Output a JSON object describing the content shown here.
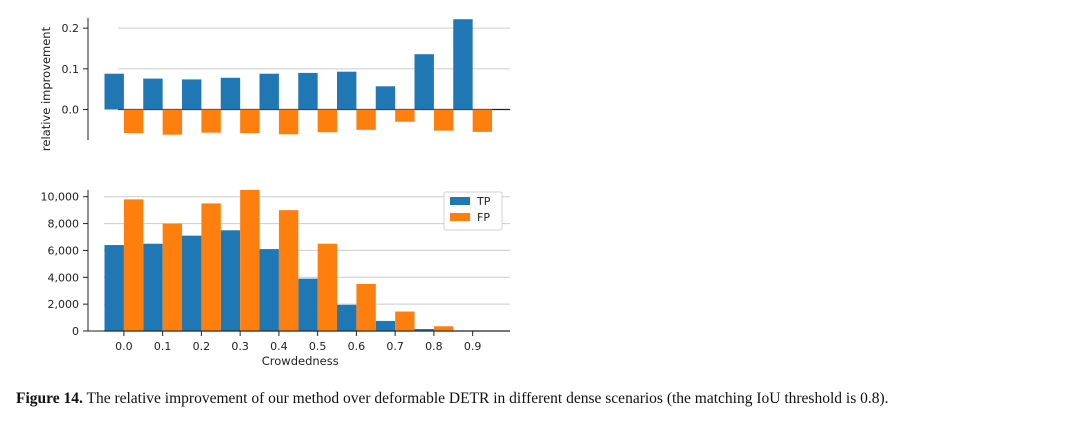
{
  "chart_data": [
    {
      "type": "bar",
      "categories": [
        "0.0",
        "0.1",
        "0.2",
        "0.3",
        "0.4",
        "0.5",
        "0.6",
        "0.7",
        "0.8",
        "0.9"
      ],
      "series": [
        {
          "color": "#1f77b4",
          "values": [
            0.088,
            0.076,
            0.074,
            0.078,
            0.088,
            0.09,
            0.093,
            0.057,
            0.136,
            0.222
          ]
        },
        {
          "color": "#ff7f0e",
          "values": [
            -0.058,
            -0.062,
            -0.057,
            -0.058,
            -0.061,
            -0.056,
            -0.05,
            -0.03,
            -0.052,
            -0.055
          ]
        }
      ],
      "ylabel": "relative improvement",
      "yticks": [
        "0.0",
        "0.1",
        "0.2"
      ],
      "ylim": [
        -0.075,
        0.225
      ],
      "grid": "horizontal"
    },
    {
      "type": "bar",
      "categories": [
        "0.0",
        "0.1",
        "0.2",
        "0.3",
        "0.4",
        "0.5",
        "0.6",
        "0.7",
        "0.8",
        "0.9"
      ],
      "series": [
        {
          "name": "TP",
          "color": "#1f77b4",
          "values": [
            6400,
            6500,
            7100,
            7500,
            6100,
            3900,
            1950,
            750,
            150,
            0
          ]
        },
        {
          "name": "FP",
          "color": "#ff7f0e",
          "values": [
            9800,
            8000,
            9500,
            10500,
            9000,
            6500,
            3500,
            1450,
            350,
            0
          ]
        }
      ],
      "xlabel": "Crowdedness",
      "yticks": [
        "0",
        "2,000",
        "4,000",
        "6,000",
        "8,000",
        "10,000"
      ],
      "ylim": [
        0,
        10500
      ],
      "legend": "top-right",
      "grid": "horizontal"
    }
  ],
  "caption": {
    "label": "Figure 14.",
    "text": "The relative improvement of our method over deformable DETR in different dense scenarios (the matching IoU threshold is 0.8)."
  }
}
